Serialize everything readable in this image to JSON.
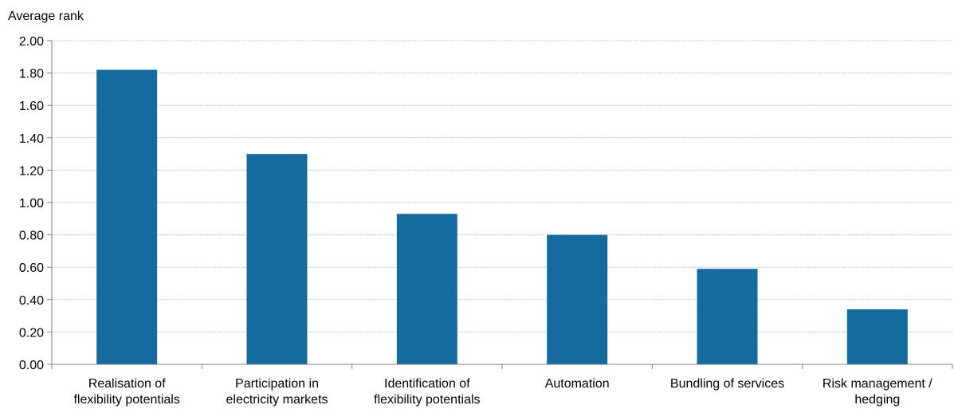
{
  "chart_data": {
    "type": "bar",
    "ylabel": "Average rank",
    "categories": [
      [
        "Realisation of",
        "flexibility potentials"
      ],
      [
        "Participation in",
        "electricity markets"
      ],
      [
        "Identification of",
        "flexibility potentials"
      ],
      [
        "Automation"
      ],
      [
        "Bundling of services"
      ],
      [
        "Risk management /",
        "hedging"
      ]
    ],
    "values": [
      1.82,
      1.3,
      0.93,
      0.8,
      0.59,
      0.34
    ],
    "ylim": [
      0,
      2.0
    ],
    "yticks": [
      "0.00",
      "0.20",
      "0.40",
      "0.60",
      "0.80",
      "1.00",
      "1.20",
      "1.40",
      "1.60",
      "1.80",
      "2.00"
    ],
    "bar_color": "#156a9e",
    "grid": true
  }
}
